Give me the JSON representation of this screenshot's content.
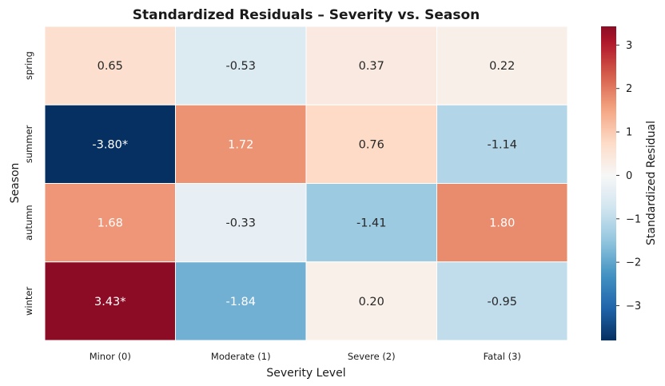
{
  "chart_data": {
    "type": "heatmap",
    "title": "Standardized Residuals – Severity vs. Season",
    "xlabel": "Severity Level",
    "ylabel": "Season",
    "x_categories": [
      "Minor (0)",
      "Moderate (1)",
      "Severe (2)",
      "Fatal (3)"
    ],
    "y_categories": [
      "spring",
      "summer",
      "autumn",
      "winter"
    ],
    "values": [
      [
        0.65,
        -0.53,
        0.37,
        0.22
      ],
      [
        -3.8,
        1.72,
        0.76,
        -1.14
      ],
      [
        1.68,
        -0.33,
        -1.41,
        1.8
      ],
      [
        3.43,
        -1.84,
        0.2,
        -0.95
      ]
    ],
    "cell_labels": [
      [
        "0.65",
        "-0.53",
        "0.37",
        "0.22"
      ],
      [
        "-3.80*",
        "1.72",
        "0.76",
        "-1.14"
      ],
      [
        "1.68",
        "-0.33",
        "-1.41",
        "1.80"
      ],
      [
        "3.43*",
        "-1.84",
        "0.20",
        "-0.95"
      ]
    ],
    "colormap": "RdBu_r",
    "colorbar": {
      "label": "Standardized Residual",
      "range": [
        -3.8,
        3.43
      ],
      "ticks": [
        3,
        2,
        1,
        0,
        -1,
        -2,
        -3
      ],
      "tick_labels": [
        "3",
        "2",
        "1",
        "0",
        "−1",
        "−2",
        "−3"
      ]
    },
    "colors": {
      "negative_extreme": "#053061",
      "neutral": "#f7f7f7",
      "positive_extreme": "#67001f"
    }
  }
}
